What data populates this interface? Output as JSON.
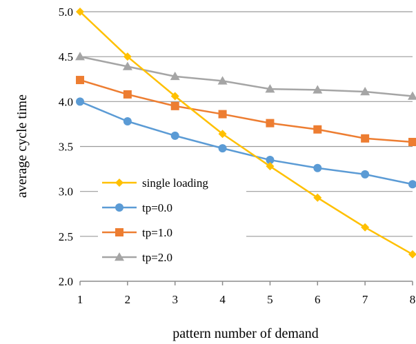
{
  "chart_data": {
    "type": "line",
    "xlabel": "pattern number of demand",
    "ylabel": "average cycle time",
    "x": [
      1,
      2,
      3,
      4,
      5,
      6,
      7,
      8
    ],
    "xlim": [
      1,
      8
    ],
    "ylim": [
      2.0,
      5.0
    ],
    "yticks": [
      "2.0",
      "2.5",
      "3.0",
      "3.5",
      "4.0",
      "4.5",
      "5.0"
    ],
    "xticks": [
      "1",
      "2",
      "3",
      "4",
      "5",
      "6",
      "7",
      "8"
    ],
    "grid": "horizontal",
    "legend_position": "lower-left",
    "series": [
      {
        "name": "single loading",
        "color": "#FFC000",
        "marker": "diamond",
        "values": [
          5.0,
          4.5,
          4.06,
          3.64,
          3.28,
          2.93,
          2.6,
          2.3
        ]
      },
      {
        "name": "tp=0.0",
        "color": "#5B9BD5",
        "marker": "circle",
        "values": [
          4.0,
          3.78,
          3.62,
          3.48,
          3.35,
          3.26,
          3.19,
          3.08
        ]
      },
      {
        "name": "tp=1.0",
        "color": "#ED7D31",
        "marker": "square",
        "values": [
          4.24,
          4.08,
          3.95,
          3.86,
          3.76,
          3.69,
          3.59,
          3.55
        ]
      },
      {
        "name": "tp=2.0",
        "color": "#A5A5A5",
        "marker": "triangle",
        "values": [
          4.5,
          4.39,
          4.28,
          4.23,
          4.14,
          4.13,
          4.11,
          4.06
        ]
      }
    ]
  }
}
